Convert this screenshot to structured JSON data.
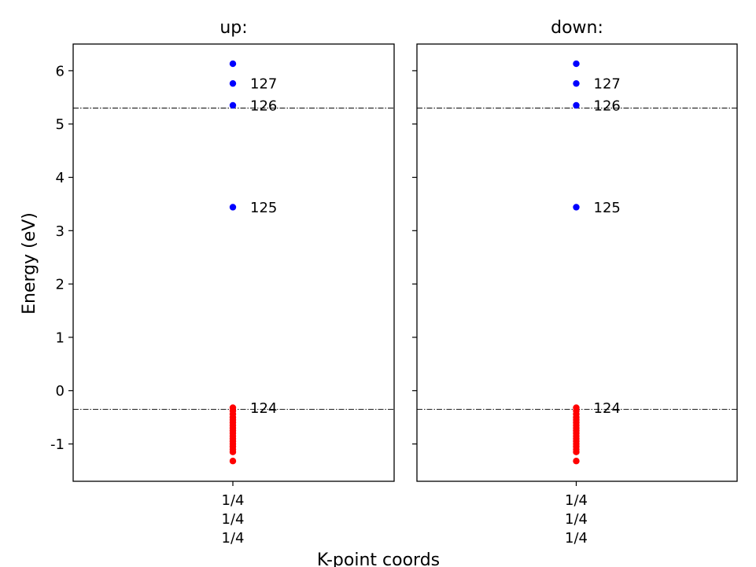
{
  "chart_data": {
    "type": "scatter",
    "ylabel": "Energy (eV)",
    "xlabel": "K-point coords",
    "ylim": [
      -1.7,
      6.5
    ],
    "yticks": [
      6,
      5,
      4,
      3,
      2,
      1,
      0,
      -1
    ],
    "ytick_labels": [
      "6",
      "5",
      "4",
      "3",
      "2",
      "1",
      "0",
      "-1"
    ],
    "colors": {
      "occupied": "#ff0000",
      "unoccupied": "#0000ff"
    },
    "panels": [
      {
        "title": "up:",
        "kpoint_labels": [
          "1/4",
          "1/4",
          "1/4"
        ],
        "hlines": [
          5.3,
          -0.35
        ],
        "occupied": [
          -0.32,
          -0.38,
          -0.44,
          -0.5,
          -0.55,
          -0.6,
          -0.65,
          -0.7,
          -0.75,
          -0.8,
          -0.85,
          -0.9,
          -0.95,
          -1.0,
          -1.05,
          -1.1,
          -1.15,
          -1.32
        ],
        "unoccupied": [
          3.44,
          5.35,
          5.76,
          6.13
        ],
        "band_labels": [
          {
            "text": "127",
            "y": 5.76
          },
          {
            "text": "126",
            "y": 5.35
          },
          {
            "text": "125",
            "y": 3.44
          },
          {
            "text": "124",
            "y": -0.32
          }
        ]
      },
      {
        "title": "down:",
        "kpoint_labels": [
          "1/4",
          "1/4",
          "1/4"
        ],
        "hlines": [
          5.3,
          -0.35
        ],
        "occupied": [
          -0.32,
          -0.38,
          -0.44,
          -0.5,
          -0.55,
          -0.6,
          -0.65,
          -0.7,
          -0.75,
          -0.8,
          -0.85,
          -0.9,
          -0.95,
          -1.0,
          -1.05,
          -1.1,
          -1.15,
          -1.32
        ],
        "unoccupied": [
          3.44,
          5.35,
          5.76,
          6.13
        ],
        "band_labels": [
          {
            "text": "127",
            "y": 5.76
          },
          {
            "text": "126",
            "y": 5.35
          },
          {
            "text": "125",
            "y": 3.44
          },
          {
            "text": "124",
            "y": -0.32
          }
        ]
      }
    ]
  }
}
